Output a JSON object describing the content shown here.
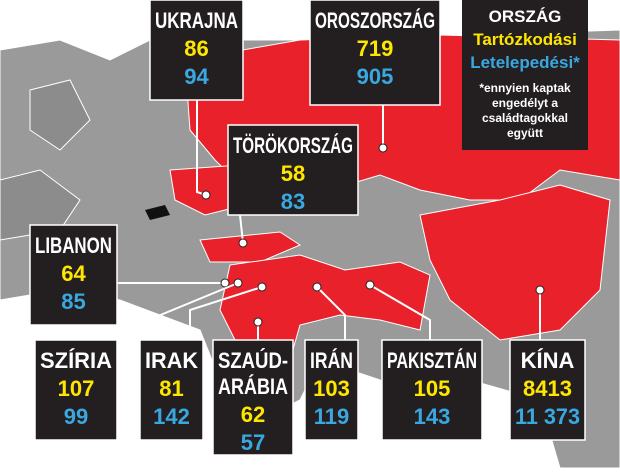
{
  "legend": {
    "title": "ORSZÁG",
    "residence_label": "Tartózkodási",
    "settlement_label": "Letelepedési*",
    "note_lines": [
      "*ennyien kaptak",
      "engedélyt a",
      "családtagokkal",
      "együtt"
    ]
  },
  "countries": [
    {
      "name": [
        "UKRAJNA"
      ],
      "residence": "86",
      "settlement": "94"
    },
    {
      "name": [
        "OROSZORSZÁG"
      ],
      "residence": "719",
      "settlement": "905"
    },
    {
      "name": [
        "TÖRÖKORSZÁG"
      ],
      "residence": "58",
      "settlement": "83"
    },
    {
      "name": [
        "LIBANON"
      ],
      "residence": "64",
      "settlement": "85"
    },
    {
      "name": [
        "SZÍRIA"
      ],
      "residence": "107",
      "settlement": "99"
    },
    {
      "name": [
        "IRAK"
      ],
      "residence": "81",
      "settlement": "142"
    },
    {
      "name": [
        "SZAÚD-",
        "ARÁBIA"
      ],
      "residence": "62",
      "settlement": "57"
    },
    {
      "name": [
        "IRÁN"
      ],
      "residence": "103",
      "settlement": "119"
    },
    {
      "name": [
        "PAKISZTÁN"
      ],
      "residence": "105",
      "settlement": "143"
    },
    {
      "name": [
        "KÍNA"
      ],
      "residence": "8413",
      "settlement": "11 373"
    }
  ]
}
